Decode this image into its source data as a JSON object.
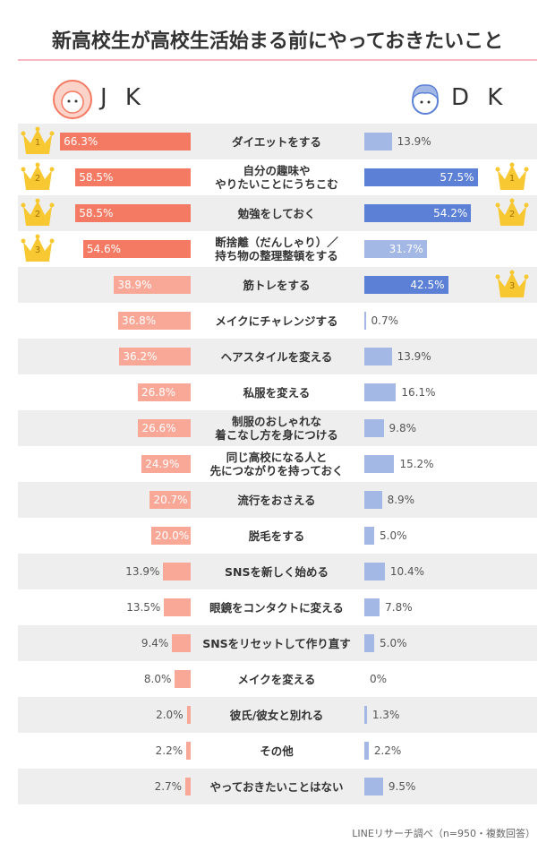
{
  "chart_data": {
    "type": "butterfly",
    "title": "新高校生が高校生活始まる前にやっておきたいこと",
    "categories": [
      "ダイエットをする",
      "自分の趣味や\nやりたいことにうちこむ",
      "勉強をしておく",
      "断捨離（だんしゃり）／\n持ち物の整理整頓をする",
      "筋トレをする",
      "メイクにチャレンジする",
      "ヘアスタイルを変える",
      "私服を変える",
      "制服のおしゃれな\n着こなし方を身につける",
      "同じ高校になる人と\n先につながりを持っておく",
      "流行をおさえる",
      "脱毛をする",
      "SNSを新しく始める",
      "眼鏡をコンタクトに変える",
      "SNSをリセットして作り直す",
      "メイクを変える",
      "彼氏/彼女と別れる",
      "その他",
      "やっておきたいことはない"
    ],
    "series": [
      {
        "name": "J K",
        "values": [
          66.3,
          58.5,
          58.5,
          54.6,
          38.9,
          36.8,
          36.2,
          26.8,
          26.6,
          24.9,
          20.7,
          20.0,
          13.9,
          13.5,
          9.4,
          8.0,
          2.0,
          2.2,
          2.7
        ],
        "value_labels": [
          "66.3%",
          "58.5%",
          "58.5%",
          "54.6%",
          "38.9%",
          "36.8%",
          "36.2%",
          "26.8%",
          "26.6%",
          "24.9%",
          "20.7%",
          "20.0%",
          "13.9%",
          "13.5%",
          "9.4%",
          "8.0%",
          "2.0%",
          "2.2%",
          "2.7%"
        ],
        "colors": [
          "#f47a63",
          "#f47a63",
          "#f47a63",
          "#f47a63",
          "#f9a898",
          "#f9a898",
          "#f9a898",
          "#f9a898",
          "#f9a898",
          "#f9a898",
          "#f9a898",
          "#f9a898",
          "#f9a898",
          "#f9a898",
          "#f9a898",
          "#f9a898",
          "#f9a898",
          "#f9a898",
          "#f9a898"
        ],
        "ranks": [
          1,
          2,
          2,
          3,
          null,
          null,
          null,
          null,
          null,
          null,
          null,
          null,
          null,
          null,
          null,
          null,
          null,
          null,
          null
        ]
      },
      {
        "name": "D K",
        "values": [
          13.9,
          57.5,
          54.2,
          31.7,
          42.5,
          0.7,
          13.9,
          16.1,
          9.8,
          15.2,
          8.9,
          5.0,
          10.4,
          7.8,
          5.0,
          0,
          1.3,
          2.2,
          9.5
        ],
        "value_labels": [
          "13.9%",
          "57.5%",
          "54.2%",
          "31.7%",
          "42.5%",
          "0.7%",
          "13.9%",
          "16.1%",
          "9.8%",
          "15.2%",
          "8.9%",
          "5.0%",
          "10.4%",
          "7.8%",
          "5.0%",
          "0%",
          "1.3%",
          "2.2%",
          "9.5%"
        ],
        "colors": [
          "#a4b8e6",
          "#5b80d6",
          "#5b80d6",
          "#a4b8e6",
          "#5b80d6",
          "#a4b8e6",
          "#a4b8e6",
          "#a4b8e6",
          "#a4b8e6",
          "#a4b8e6",
          "#a4b8e6",
          "#a4b8e6",
          "#a4b8e6",
          "#a4b8e6",
          "#a4b8e6",
          "#a4b8e6",
          "#a4b8e6",
          "#a4b8e6",
          "#a4b8e6"
        ],
        "ranks": [
          null,
          1,
          2,
          null,
          3,
          null,
          null,
          null,
          null,
          null,
          null,
          null,
          null,
          null,
          null,
          null,
          null,
          null,
          null
        ]
      }
    ],
    "source": "LINEリサーチ調べ（n=950・複数回答）"
  }
}
